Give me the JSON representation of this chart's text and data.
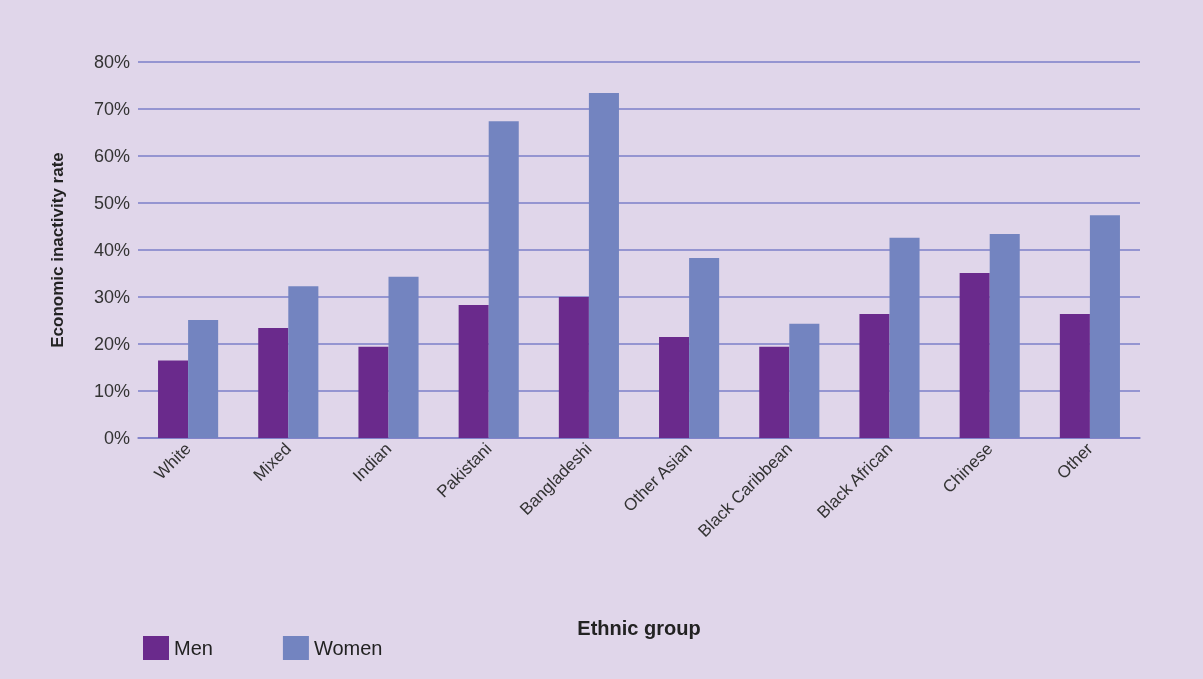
{
  "chart_data": {
    "type": "bar",
    "xlabel": "Ethnic group",
    "ylabel": "Economic inactivity rate",
    "categories": [
      "White",
      "Mixed",
      "Indian",
      "Pakistani",
      "Bangladeshi",
      "Other Asian",
      "Black Caribbean",
      "Black African",
      "Chinese",
      "Other"
    ],
    "series": [
      {
        "name": "Men",
        "color": "#6a2a8c",
        "values": [
          16.5,
          23.4,
          19.4,
          28.3,
          30,
          21.5,
          19.4,
          26.4,
          35.1,
          26.4
        ]
      },
      {
        "name": "Women",
        "color": "#7384c0",
        "values": [
          25.1,
          32.3,
          34.3,
          67.4,
          73.4,
          38.3,
          24.3,
          42.6,
          43.4,
          47.4
        ]
      }
    ],
    "ylim": [
      0,
      80
    ],
    "yticks": [
      {
        "value": 0,
        "label": "0%"
      },
      {
        "value": 10,
        "label": "10%"
      },
      {
        "value": 20,
        "label": "20%"
      },
      {
        "value": 30,
        "label": "30%"
      },
      {
        "value": 40,
        "label": "40%"
      },
      {
        "value": 50,
        "label": "50%"
      },
      {
        "value": 60,
        "label": "60%"
      },
      {
        "value": 70,
        "label": "70%"
      },
      {
        "value": 80,
        "label": "80%"
      }
    ],
    "grid": "y",
    "legend": "bottom left"
  }
}
